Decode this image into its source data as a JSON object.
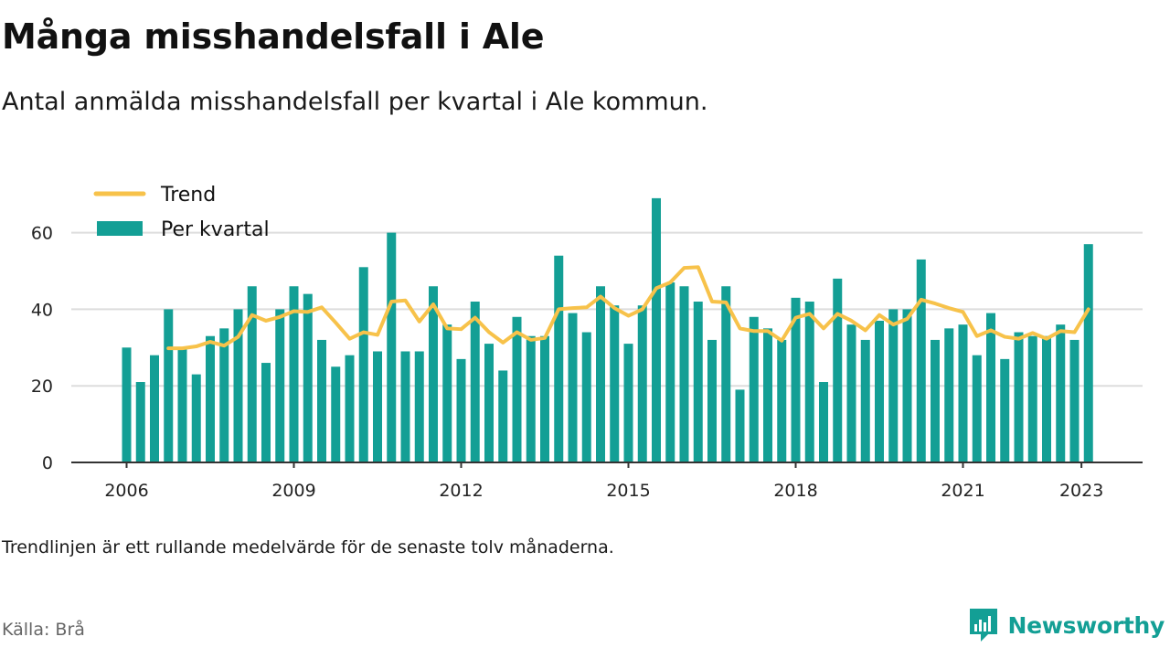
{
  "title": "Många misshandelsfall i Ale",
  "subtitle": "Antal anmälda misshandelsfall per kvartal i Ale kommun.",
  "note": "Trendlinjen är ett rullande medelvärde för de senaste tolv månaderna.",
  "source": "Källa: Brå",
  "brand": "Newsworthy",
  "colors": {
    "bars": "#139f95",
    "trend": "#f7c24a",
    "axis": "#333333",
    "grid": "#dddddd",
    "brand": "#139f95"
  },
  "chart_data": {
    "type": "bar",
    "x_unit": "quarter",
    "x_start": "2006-Q1",
    "series": [
      {
        "name": "Per kvartal",
        "type": "bar",
        "values": [
          30,
          21,
          28,
          40,
          30,
          23,
          33,
          35,
          40,
          46,
          26,
          40,
          46,
          44,
          32,
          25,
          28,
          51,
          29,
          60,
          29,
          29,
          46,
          36,
          27,
          42,
          31,
          24,
          38,
          33,
          33,
          54,
          39,
          34,
          46,
          41,
          31,
          41,
          69,
          47,
          46,
          42,
          32,
          46,
          19,
          38,
          35,
          32,
          43,
          42,
          21,
          48,
          36,
          32,
          37,
          40,
          40,
          53,
          32,
          35,
          36,
          28,
          39,
          27,
          34,
          33,
          33,
          36,
          32,
          57
        ]
      },
      {
        "name": "Trend",
        "type": "line",
        "start_index": 3,
        "values": [
          29.8,
          29.8,
          30.3,
          31.5,
          30.5,
          32.8,
          38.5,
          37.0,
          38.0,
          39.5,
          39.3,
          40.5,
          36.5,
          32.3,
          34.0,
          33.3,
          42.0,
          42.3,
          36.8,
          41.3,
          35.0,
          34.8,
          37.8,
          34.0,
          31.3,
          34.0,
          32.0,
          32.5,
          40.0,
          40.3,
          40.5,
          43.3,
          40.3,
          38.3,
          40.0,
          45.5,
          47.0,
          50.8,
          51.0,
          42.0,
          41.8,
          35.0,
          34.3,
          34.3,
          31.8,
          37.8,
          38.8,
          35.0,
          38.8,
          37.0,
          34.5,
          38.5,
          36.0,
          37.5,
          42.5,
          41.5,
          40.3,
          39.3,
          33.0,
          34.5,
          32.8,
          32.3,
          33.8,
          32.3,
          34.3,
          34.0,
          40.0
        ]
      }
    ],
    "xticks": [
      {
        "label": "2006",
        "index": 0
      },
      {
        "label": "2009",
        "index": 12
      },
      {
        "label": "2012",
        "index": 24
      },
      {
        "label": "2015",
        "index": 36
      },
      {
        "label": "2018",
        "index": 48
      },
      {
        "label": "2021",
        "index": 60
      },
      {
        "label": "2023",
        "index": 68.5
      }
    ],
    "yticks": [
      0,
      20,
      40,
      60
    ],
    "ylim": [
      0,
      70
    ],
    "grid": "horizontal",
    "legend": {
      "position": "top-left",
      "entries": [
        {
          "label": "Trend",
          "kind": "line"
        },
        {
          "label": "Per kvartal",
          "kind": "bar"
        }
      ]
    }
  }
}
